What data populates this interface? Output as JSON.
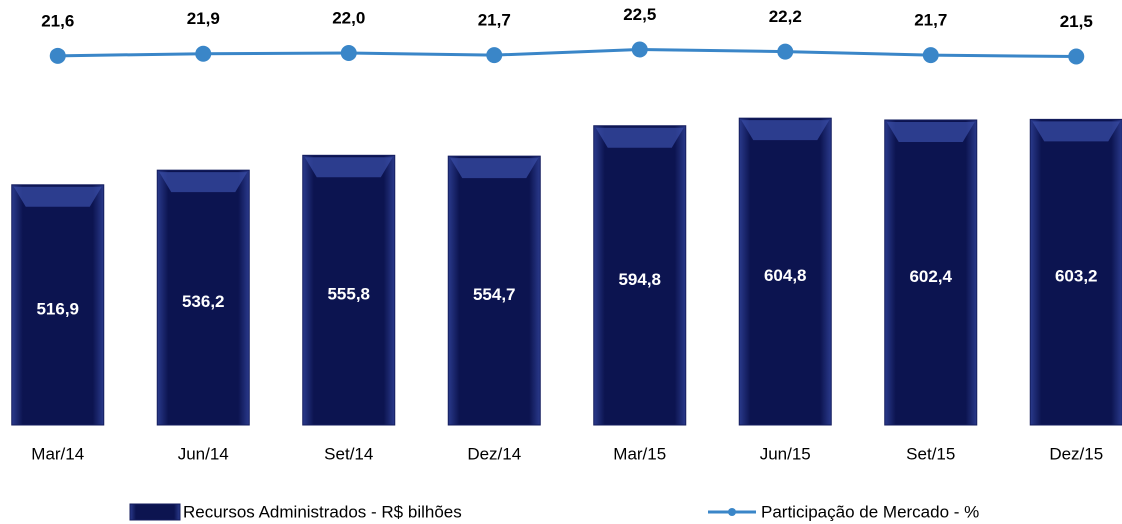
{
  "chart_data": {
    "type": "bar-line",
    "categories": [
      "Mar/14",
      "Jun/14",
      "Set/14",
      "Dez/14",
      "Mar/15",
      "Jun/15",
      "Set/15",
      "Dez/15"
    ],
    "series": [
      {
        "name": "Recursos Administrados - R$ bilhões",
        "type": "bar",
        "color": "#141d5e",
        "values": [
          516.9,
          536.2,
          555.8,
          554.7,
          594.8,
          604.8,
          602.4,
          603.2
        ],
        "value_labels": [
          "516,9",
          "536,2",
          "555,8",
          "554,7",
          "594,8",
          "604,8",
          "602,4",
          "603,2"
        ]
      },
      {
        "name": "Participação de Mercado - %",
        "type": "line",
        "axis": "y2",
        "color": "#3a86c8",
        "values": [
          21.6,
          21.9,
          22.0,
          21.7,
          22.5,
          22.2,
          21.7,
          21.5
        ],
        "value_labels": [
          "21,6",
          "21,9",
          "22,0",
          "21,7",
          "22,5",
          "22,2",
          "21,7",
          "21,5"
        ]
      }
    ],
    "ylim": [
      200,
      700
    ],
    "y2lim": [
      -31,
      23
    ]
  }
}
